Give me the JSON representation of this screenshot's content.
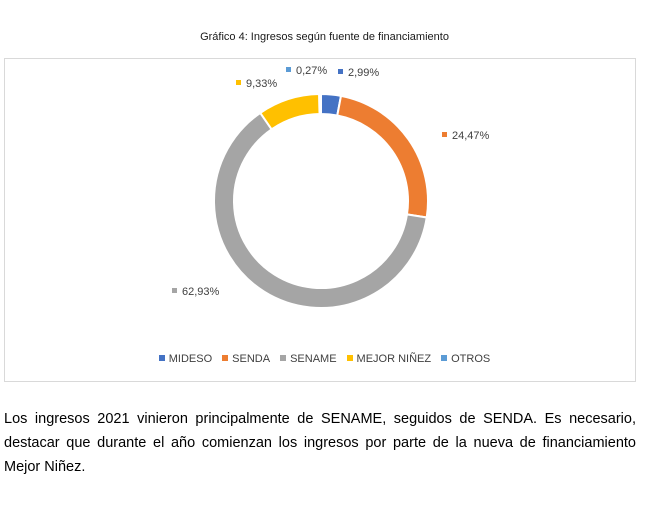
{
  "figure": {
    "title": "Gráfico 4: Ingresos según fuente de financiamiento"
  },
  "chart_data": {
    "type": "pie",
    "donut": true,
    "categories": [
      "MIDESO",
      "SENDA",
      "SENAME",
      "MEJOR NIÑEZ",
      "OTROS"
    ],
    "values": [
      2.99,
      24.47,
      62.93,
      9.33,
      0.27
    ],
    "labels": [
      "2,99%",
      "24,47%",
      "62,93%",
      "9,33%",
      "0,27%"
    ],
    "colors": [
      "#4472c4",
      "#ed7d31",
      "#a5a5a5",
      "#ffc000",
      "#5b9bd5"
    ],
    "legend_position": "bottom",
    "title": ""
  },
  "paragraph": "Los ingresos 2021 vinieron principalmente de SENAME, seguidos de SENDA. Es necesario, destacar que durante el año comienzan los ingresos por parte de la nueva de financiamiento Mejor Niñez."
}
